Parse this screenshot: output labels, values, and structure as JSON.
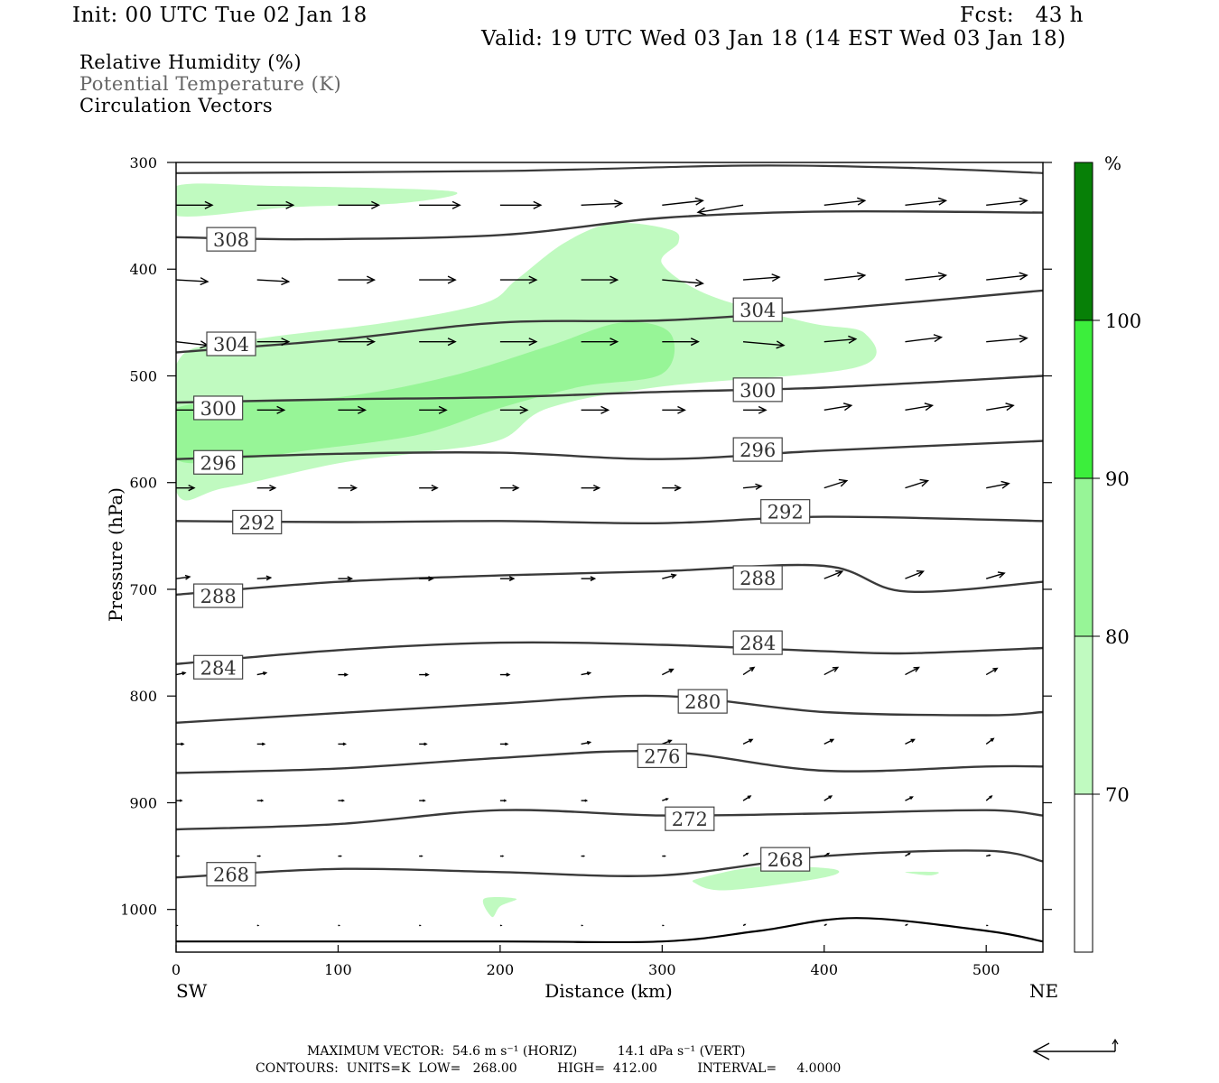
{
  "header": {
    "init": "Init: 00 UTC Tue 02 Jan 18",
    "fcst": "Fcst:   43 h",
    "valid": "Valid: 19 UTC Wed 03 Jan 18 (14 EST Wed 03 Jan 18)"
  },
  "legend": {
    "line1": "Relative Humidity (%)",
    "line2": "Potential Temperature (K)",
    "line3": "Circulation Vectors"
  },
  "footer": {
    "max_vector": "MAXIMUM VECTOR:  54.6 m s⁻¹ (HORIZ)          14.1 dPa s⁻¹ (VERT)",
    "contours": "CONTOURS:  UNITS=K  LOW=   268.00          HIGH=  412.00          INTERVAL=     4.0000"
  },
  "chart_data": {
    "type": "cross-section",
    "xlabel": "Distance (km)",
    "ylabel": "Pressure (hPa)",
    "xlim": [
      0,
      535
    ],
    "ylim": [
      1040,
      300
    ],
    "x_ticks": [
      0,
      100,
      200,
      300,
      400,
      500
    ],
    "y_ticks": [
      300,
      400,
      500,
      600,
      700,
      800,
      900,
      1000
    ],
    "x_end_labels": [
      "SW",
      "NE"
    ],
    "colorbar": {
      "unit": "%",
      "levels": [
        70,
        80,
        90,
        100
      ],
      "colors": [
        "#ffffff",
        "#c0fac0",
        "#97f597",
        "#3cee3c",
        "#05be05",
        "#078007"
      ]
    },
    "colors": {
      "theta": "#3a3a3a",
      "vectors": "#000000",
      "frame": "#000000"
    },
    "theta_contours": [
      {
        "value": 308,
        "label": "308",
        "points": [
          [
            0,
            370
          ],
          [
            80,
            372
          ],
          [
            200,
            368
          ],
          [
            300,
            352
          ],
          [
            400,
            346
          ],
          [
            535,
            347
          ]
        ],
        "labels_at": [
          [
            34,
            372
          ]
        ]
      },
      {
        "value": 304,
        "label": "304",
        "points": [
          [
            0,
            478
          ],
          [
            100,
            466
          ],
          [
            200,
            450
          ],
          [
            300,
            448
          ],
          [
            400,
            438
          ],
          [
            535,
            420
          ]
        ],
        "labels_at": [
          [
            34,
            470
          ],
          [
            359,
            438
          ]
        ]
      },
      {
        "value": 300,
        "label": "300",
        "points": [
          [
            0,
            525
          ],
          [
            100,
            522
          ],
          [
            200,
            520
          ],
          [
            300,
            515
          ],
          [
            400,
            511
          ],
          [
            535,
            500
          ]
        ],
        "labels_at": [
          [
            26,
            530
          ],
          [
            359,
            513
          ]
        ]
      },
      {
        "value": 296,
        "label": "296",
        "points": [
          [
            0,
            578
          ],
          [
            100,
            573
          ],
          [
            200,
            572
          ],
          [
            300,
            578
          ],
          [
            400,
            570
          ],
          [
            535,
            561
          ]
        ],
        "labels_at": [
          [
            26,
            581
          ],
          [
            359,
            569
          ]
        ]
      },
      {
        "value": 292,
        "label": "292",
        "points": [
          [
            0,
            636
          ],
          [
            100,
            637
          ],
          [
            200,
            636
          ],
          [
            300,
            638
          ],
          [
            400,
            632
          ],
          [
            535,
            636
          ]
        ],
        "labels_at": [
          [
            50,
            637
          ],
          [
            376,
            627
          ]
        ]
      },
      {
        "value": 288,
        "label": "288",
        "points": [
          [
            0,
            705
          ],
          [
            100,
            693
          ],
          [
            200,
            687
          ],
          [
            300,
            683
          ],
          [
            400,
            678
          ],
          [
            450,
            702
          ],
          [
            535,
            693
          ]
        ],
        "labels_at": [
          [
            26,
            706
          ],
          [
            359,
            689
          ]
        ]
      },
      {
        "value": 284,
        "label": "284",
        "points": [
          [
            0,
            770
          ],
          [
            100,
            757
          ],
          [
            200,
            750
          ],
          [
            300,
            752
          ],
          [
            400,
            758
          ],
          [
            450,
            760
          ],
          [
            535,
            755
          ]
        ],
        "labels_at": [
          [
            26,
            773
          ],
          [
            359,
            750
          ]
        ]
      },
      {
        "value": 280,
        "label": "280",
        "points": [
          [
            0,
            825
          ],
          [
            100,
            816
          ],
          [
            200,
            807
          ],
          [
            300,
            800
          ],
          [
            400,
            815
          ],
          [
            500,
            818
          ],
          [
            535,
            815
          ]
        ],
        "labels_at": [
          [
            325,
            805
          ]
        ]
      },
      {
        "value": 276,
        "label": "276",
        "points": [
          [
            0,
            872
          ],
          [
            100,
            868
          ],
          [
            200,
            858
          ],
          [
            300,
            852
          ],
          [
            400,
            870
          ],
          [
            500,
            866
          ],
          [
            535,
            866
          ]
        ],
        "labels_at": [
          [
            300,
            856
          ]
        ]
      },
      {
        "value": 272,
        "label": "272",
        "points": [
          [
            0,
            925
          ],
          [
            100,
            920
          ],
          [
            200,
            907
          ],
          [
            300,
            912
          ],
          [
            400,
            910
          ],
          [
            500,
            907
          ],
          [
            535,
            912
          ]
        ],
        "labels_at": [
          [
            317,
            915
          ]
        ]
      },
      {
        "value": 268,
        "label": "268",
        "points": [
          [
            0,
            970
          ],
          [
            100,
            962
          ],
          [
            200,
            965
          ],
          [
            300,
            968
          ],
          [
            400,
            950
          ],
          [
            500,
            945
          ],
          [
            535,
            955
          ]
        ],
        "labels_at": [
          [
            34,
            967
          ],
          [
            376,
            953
          ]
        ]
      }
    ],
    "rh_regions": [
      {
        "level": 70,
        "points": [
          [
            0,
            322
          ],
          [
            60,
            322
          ],
          [
            170,
            327
          ],
          [
            140,
            338
          ],
          [
            70,
            342
          ],
          [
            0,
            350
          ]
        ]
      },
      {
        "level": 70,
        "points": [
          [
            0,
            490
          ],
          [
            40,
            468
          ],
          [
            130,
            450
          ],
          [
            190,
            432
          ],
          [
            210,
            410
          ],
          [
            240,
            375
          ],
          [
            270,
            357
          ],
          [
            305,
            363
          ],
          [
            310,
            375
          ],
          [
            300,
            395
          ],
          [
            330,
            425
          ],
          [
            390,
            450
          ],
          [
            425,
            460
          ],
          [
            420,
            492
          ],
          [
            300,
            510
          ],
          [
            230,
            530
          ],
          [
            200,
            560
          ],
          [
            150,
            572
          ],
          [
            100,
            582
          ],
          [
            30,
            605
          ],
          [
            0,
            608
          ]
        ]
      },
      {
        "level": 80,
        "points": [
          [
            0,
            530
          ],
          [
            100,
            520
          ],
          [
            170,
            500
          ],
          [
            230,
            472
          ],
          [
            275,
            450
          ],
          [
            305,
            460
          ],
          [
            300,
            498
          ],
          [
            250,
            510
          ],
          [
            200,
            530
          ],
          [
            150,
            555
          ],
          [
            80,
            570
          ],
          [
            40,
            578
          ],
          [
            0,
            578
          ]
        ]
      },
      {
        "level": 70,
        "points": [
          [
            325,
            970
          ],
          [
            360,
            960
          ],
          [
            405,
            962
          ],
          [
            400,
            970
          ],
          [
            340,
            982
          ],
          [
            320,
            975
          ]
        ]
      },
      {
        "level": 70,
        "points": [
          [
            190,
            990
          ],
          [
            210,
            990
          ],
          [
            200,
            997
          ],
          [
            195,
            1007
          ]
        ]
      },
      {
        "level": 70,
        "points": [
          [
            450,
            965
          ],
          [
            470,
            965
          ],
          [
            465,
            968
          ]
        ]
      }
    ],
    "vectors": [
      {
        "p": 340,
        "x0": 0,
        "items": [
          [
            40,
            0
          ],
          [
            40,
            0
          ],
          [
            45,
            0
          ],
          [
            45,
            0
          ],
          [
            45,
            0
          ],
          [
            45,
            2
          ],
          [
            45,
            5
          ],
          [
            -50,
            -8
          ],
          [
            45,
            5
          ],
          [
            45,
            5
          ],
          [
            45,
            5
          ]
        ]
      },
      {
        "p": 410,
        "x0": 0,
        "items": [
          [
            35,
            -2
          ],
          [
            35,
            -2
          ],
          [
            40,
            0
          ],
          [
            40,
            0
          ],
          [
            40,
            0
          ],
          [
            40,
            0
          ],
          [
            45,
            -4
          ],
          [
            40,
            3
          ],
          [
            45,
            5
          ],
          [
            45,
            5
          ],
          [
            45,
            5
          ]
        ]
      },
      {
        "p": 468,
        "x0": 0,
        "items": [
          [
            35,
            -4
          ],
          [
            35,
            0
          ],
          [
            40,
            0
          ],
          [
            40,
            0
          ],
          [
            40,
            0
          ],
          [
            40,
            0
          ],
          [
            40,
            0
          ],
          [
            45,
            -4
          ],
          [
            35,
            3
          ],
          [
            40,
            5
          ],
          [
            45,
            4
          ]
        ]
      },
      {
        "p": 532,
        "x0": 0,
        "items": [
          [
            30,
            0
          ],
          [
            30,
            0
          ],
          [
            30,
            0
          ],
          [
            30,
            0
          ],
          [
            30,
            0
          ],
          [
            30,
            0
          ],
          [
            25,
            0
          ],
          [
            25,
            0
          ],
          [
            30,
            5
          ],
          [
            30,
            5
          ],
          [
            30,
            5
          ]
        ]
      },
      {
        "p": 605,
        "x0": 0,
        "items": [
          [
            20,
            0
          ],
          [
            20,
            0
          ],
          [
            20,
            0
          ],
          [
            20,
            0
          ],
          [
            20,
            0
          ],
          [
            20,
            0
          ],
          [
            20,
            0
          ],
          [
            20,
            2
          ],
          [
            25,
            8
          ],
          [
            25,
            8
          ],
          [
            25,
            5
          ]
        ]
      },
      {
        "p": 690,
        "x0": 0,
        "items": [
          [
            15,
            2
          ],
          [
            15,
            1
          ],
          [
            15,
            0
          ],
          [
            15,
            0
          ],
          [
            15,
            0
          ],
          [
            15,
            0
          ],
          [
            15,
            4
          ],
          [
            15,
            3
          ],
          [
            20,
            8
          ],
          [
            20,
            8
          ],
          [
            20,
            6
          ]
        ]
      },
      {
        "p": 780,
        "x0": 0,
        "items": [
          [
            10,
            2
          ],
          [
            10,
            2
          ],
          [
            10,
            0
          ],
          [
            10,
            0
          ],
          [
            10,
            0
          ],
          [
            10,
            2
          ],
          [
            12,
            6
          ],
          [
            12,
            8
          ],
          [
            15,
            8
          ],
          [
            15,
            8
          ],
          [
            12,
            7
          ]
        ]
      },
      {
        "p": 845,
        "x0": 0,
        "items": [
          [
            8,
            0
          ],
          [
            8,
            0
          ],
          [
            8,
            0
          ],
          [
            8,
            0
          ],
          [
            8,
            0
          ],
          [
            10,
            2
          ],
          [
            10,
            4
          ],
          [
            10,
            5
          ],
          [
            10,
            5
          ],
          [
            10,
            5
          ],
          [
            8,
            6
          ]
        ]
      },
      {
        "p": 898,
        "x0": 0,
        "items": [
          [
            6,
            0
          ],
          [
            6,
            0
          ],
          [
            6,
            0
          ],
          [
            6,
            0
          ],
          [
            6,
            0
          ],
          [
            6,
            0
          ],
          [
            6,
            2
          ],
          [
            8,
            5
          ],
          [
            8,
            5
          ],
          [
            8,
            4
          ],
          [
            6,
            5
          ]
        ]
      },
      {
        "p": 950,
        "x0": 0,
        "items": [
          [
            3,
            0
          ],
          [
            3,
            0
          ],
          [
            3,
            0
          ],
          [
            3,
            0
          ],
          [
            3,
            0
          ],
          [
            3,
            0
          ],
          [
            3,
            0
          ],
          [
            5,
            3
          ],
          [
            5,
            3
          ],
          [
            5,
            3
          ],
          [
            4,
            1
          ]
        ]
      },
      {
        "p": 1015,
        "x0": 0,
        "items": [
          [
            1,
            0
          ],
          [
            1,
            0
          ],
          [
            1,
            0
          ],
          [
            1,
            0
          ],
          [
            1,
            0
          ],
          [
            1,
            0
          ],
          [
            1,
            0
          ],
          [
            2,
            1
          ],
          [
            2,
            1
          ],
          [
            2,
            1
          ],
          [
            1,
            0
          ]
        ]
      }
    ],
    "surface_line": [
      [
        0,
        1030
      ],
      [
        200,
        1030
      ],
      [
        300,
        1030
      ],
      [
        360,
        1020
      ],
      [
        420,
        1008
      ],
      [
        500,
        1020
      ],
      [
        535,
        1030
      ]
    ],
    "top_line": [
      [
        0,
        310
      ],
      [
        200,
        308
      ],
      [
        350,
        303
      ],
      [
        450,
        305
      ],
      [
        535,
        310
      ]
    ]
  }
}
